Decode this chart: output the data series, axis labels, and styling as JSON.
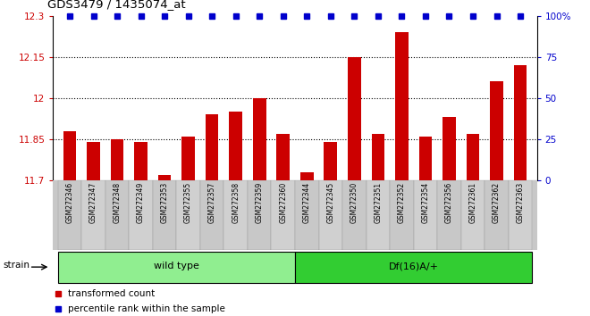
{
  "title": "GDS3479 / 1435074_at",
  "samples": [
    "GSM272346",
    "GSM272347",
    "GSM272348",
    "GSM272349",
    "GSM272353",
    "GSM272355",
    "GSM272357",
    "GSM272358",
    "GSM272359",
    "GSM272360",
    "GSM272344",
    "GSM272345",
    "GSM272350",
    "GSM272351",
    "GSM272352",
    "GSM272354",
    "GSM272356",
    "GSM272361",
    "GSM272362",
    "GSM272363"
  ],
  "values": [
    11.88,
    11.84,
    11.85,
    11.84,
    11.72,
    11.86,
    11.94,
    11.95,
    12.0,
    11.87,
    11.73,
    11.84,
    12.15,
    11.87,
    12.24,
    11.86,
    11.93,
    11.87,
    12.06,
    12.12
  ],
  "percentile_ranks": [
    100,
    100,
    100,
    100,
    100,
    100,
    100,
    100,
    100,
    100,
    100,
    100,
    100,
    100,
    100,
    100,
    100,
    100,
    100,
    100
  ],
  "bar_color": "#cc0000",
  "dot_color": "#0000cc",
  "ylim_left": [
    11.7,
    12.3
  ],
  "ylim_right": [
    0,
    100
  ],
  "yticks_left": [
    11.7,
    11.85,
    12.0,
    12.15,
    12.3
  ],
  "ytick_labels_left": [
    "11.7",
    "11.85",
    "12",
    "12.15",
    "12.3"
  ],
  "yticks_right": [
    0,
    25,
    50,
    75,
    100
  ],
  "ytick_labels_right": [
    "0",
    "25",
    "50",
    "75",
    "100%"
  ],
  "dotted_lines": [
    11.85,
    12.0,
    12.15
  ],
  "group1_label": "wild type",
  "group2_label": "Df(16)A/+",
  "group1_count": 10,
  "group2_count": 10,
  "strain_label": "strain",
  "legend1": "transformed count",
  "legend2": "percentile rank within the sample",
  "background_color": "#ffffff",
  "bar_color_legend": "#cc0000",
  "dot_color_legend": "#0000cc",
  "xlabel_color": "#cc0000",
  "ylabel_right_color": "#0000cc",
  "wt_color": "#90ee90",
  "df_color": "#32cd32",
  "label_bg_color": "#c8c8c8"
}
